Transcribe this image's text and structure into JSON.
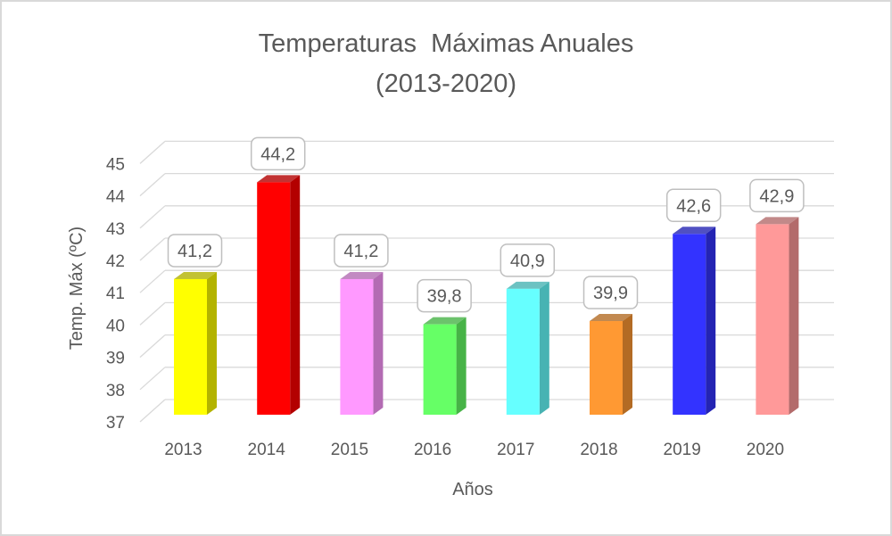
{
  "chart_data": {
    "type": "bar",
    "title": "Temperaturas  Máximas Anuales",
    "subtitle": "(2013-2020)",
    "xlabel": "Años",
    "ylabel": "Temp. Máx (ºC)",
    "ylim": [
      37,
      45
    ],
    "yticks": [
      "37",
      "38",
      "39",
      "40",
      "41",
      "42",
      "43",
      "44",
      "45"
    ],
    "grid": true,
    "categories": [
      "2013",
      "2014",
      "2015",
      "2016",
      "2017",
      "2018",
      "2019",
      "2020"
    ],
    "values": [
      41.2,
      44.2,
      41.2,
      39.8,
      40.9,
      39.9,
      42.6,
      42.9
    ],
    "data_labels": [
      "41,2",
      "44,2",
      "41,2",
      "39,8",
      "40,9",
      "39,9",
      "42,6",
      "42,9"
    ],
    "colors": [
      "#ffff00",
      "#ff0000",
      "#ff99ff",
      "#66ff66",
      "#66ffff",
      "#ff9933",
      "#3333ff",
      "#ff9999"
    ],
    "side_colors": [
      "#b3b300",
      "#b30000",
      "#b36bb3",
      "#47b347",
      "#47b3b3",
      "#b36b24",
      "#2424b3",
      "#b36b6b"
    ]
  }
}
